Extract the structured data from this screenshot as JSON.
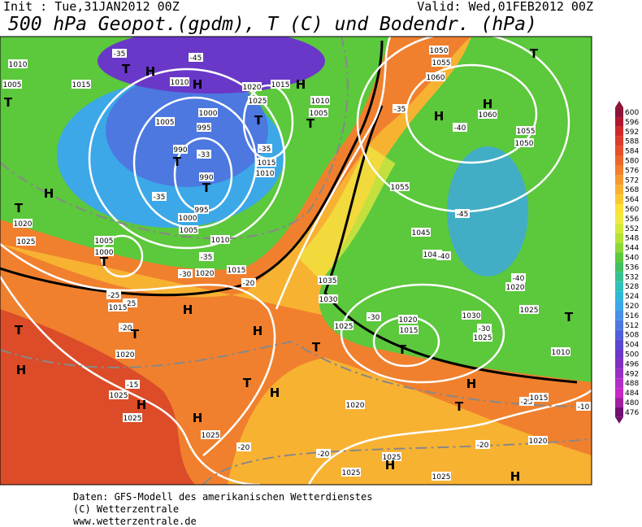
{
  "header": {
    "init": "Init : Tue,31JAN2012 00Z",
    "valid": "Valid: Wed,01FEB2012 00Z",
    "title": "500 hPa Geopot.(gpdm), T (C) und Bodendr. (hPa)"
  },
  "colorbar": {
    "levels": [
      600,
      596,
      592,
      588,
      584,
      580,
      576,
      572,
      568,
      564,
      560,
      556,
      552,
      548,
      544,
      540,
      536,
      532,
      528,
      524,
      520,
      516,
      512,
      508,
      504,
      500,
      496,
      492,
      488,
      484,
      480,
      476
    ],
    "colors": [
      "#8c1438",
      "#b01830",
      "#d02828",
      "#dc3c28",
      "#e4502a",
      "#ea682c",
      "#f0802e",
      "#f59a30",
      "#f8b232",
      "#fbc834",
      "#fde038",
      "#f0ea40",
      "#d4ea3a",
      "#b4e236",
      "#8cd838",
      "#5cc83c",
      "#40c060",
      "#38c090",
      "#30c0b8",
      "#30b8d8",
      "#3ca8e8",
      "#4890e8",
      "#4c78e0",
      "#5060d8",
      "#5a48d0",
      "#6a38c8",
      "#8030c0",
      "#9830c8",
      "#b030c8",
      "#c828c8",
      "#a020a0",
      "#701070"
    ]
  },
  "map": {
    "labels": [
      "1010",
      "1015",
      "1005",
      "T",
      "-35",
      "-45",
      "H",
      "T",
      "1010",
      "H",
      "1020",
      "1015",
      "H",
      "1025",
      "1010",
      "1000",
      "1005",
      "995",
      "1005",
      "T",
      "T",
      "990",
      "-33",
      "T",
      "-35",
      "1015",
      "1010",
      "990",
      "T",
      "-35",
      "995",
      "1000",
      "1005",
      "1010",
      "H",
      "T",
      "1020",
      "1025",
      "1005",
      "1000",
      "T",
      "-35",
      "-30",
      "1020",
      "1015",
      "-20",
      "-25",
      "-25",
      "1015",
      "H",
      "-20",
      "T",
      "1020",
      "H",
      "-15",
      "1025",
      "H",
      "1025",
      "H",
      "1025",
      "1050",
      "1055",
      "1060",
      "T",
      "H",
      "H",
      "1060",
      "-40",
      "1055",
      "1050",
      "-35",
      "1055",
      "-45",
      "1045",
      "1040",
      "-40",
      "1035",
      "1030",
      "1025",
      "-30",
      "1020",
      "1015",
      "T",
      "T",
      "1030",
      "1025",
      "-30",
      "1020",
      "-40",
      "1025",
      "T",
      "1010",
      "H",
      "T",
      "-25",
      "1015",
      "-10",
      "1020",
      "H",
      "T",
      "H",
      "-20",
      "-20",
      "1025",
      "H",
      "1025",
      "1025",
      "H",
      "-20",
      "1020",
      "T"
    ]
  },
  "footer": {
    "lines": [
      "Daten: GFS-Modell des amerikanischen Wetterdienstes",
      "(C) Wetterzentrale",
      "www.wetterzentrale.de"
    ]
  }
}
